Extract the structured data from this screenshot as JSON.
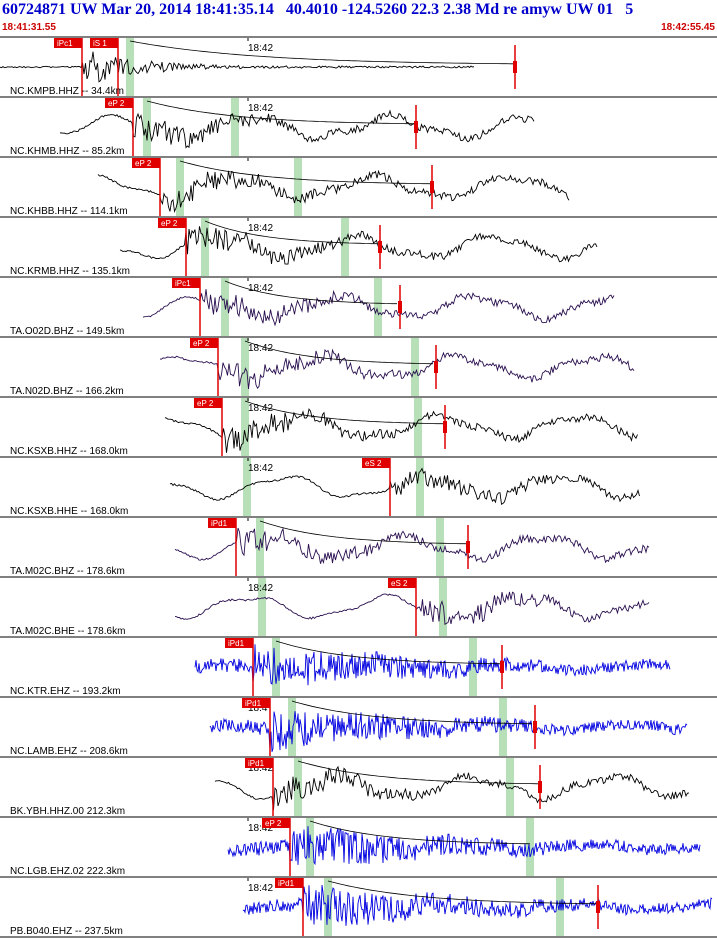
{
  "header": {
    "title": "60724871 UW Mar 20, 2014 18:41:35.14   40.4010 -124.5260 22.3 2.38 Md re amyw UW 01   5",
    "time_start": "18:41:31.55",
    "time_end": "18:42:55.45"
  },
  "colors": {
    "title": "#0000cc",
    "time_range": "#cc0000",
    "pick": "#e00000",
    "coda_window": "#b8e0b8",
    "trace_black": "#000000",
    "trace_purple": "#2a1050",
    "trace_blue": "#0000e0"
  },
  "traces": [
    {
      "label": "NC.KMPB.HHZ -- 34.4km",
      "time_label": "18:42",
      "picks": [
        "iPc1",
        "iS 1"
      ],
      "color": "black",
      "icon": "seismogram-trace"
    },
    {
      "label": "NC.KHMB.HHZ -- 85.2km",
      "time_label": "18:42",
      "picks": [
        "eP 2"
      ],
      "color": "black",
      "icon": "seismogram-trace"
    },
    {
      "label": "NC.KHBB.HHZ -- 114.1km",
      "time_label": "",
      "picks": [
        "eP 2"
      ],
      "color": "black",
      "icon": "seismogram-trace"
    },
    {
      "label": "NC.KRMB.HHZ -- 135.1km",
      "time_label": "18:42",
      "picks": [
        "eP 2"
      ],
      "color": "black",
      "icon": "seismogram-trace"
    },
    {
      "label": "TA.O02D.BHZ -- 149.5km",
      "time_label": "18:42",
      "picks": [
        "iPc1"
      ],
      "color": "purple",
      "icon": "seismogram-trace"
    },
    {
      "label": "TA.N02D.BHZ -- 166.2km",
      "time_label": "18:42",
      "picks": [
        "eP 2"
      ],
      "color": "purple",
      "icon": "seismogram-trace"
    },
    {
      "label": "NC.KSXB.HHZ -- 168.0km",
      "time_label": "18:42",
      "picks": [
        "eP 2"
      ],
      "color": "black",
      "icon": "seismogram-trace"
    },
    {
      "label": "NC.KSXB.HHE -- 168.0km",
      "time_label": "18:42",
      "picks": [
        "eS 2"
      ],
      "color": "black",
      "icon": "seismogram-trace"
    },
    {
      "label": "TA.M02C.BHZ -- 178.6km",
      "time_label": "",
      "picks": [
        "iPd1"
      ],
      "color": "purple",
      "icon": "seismogram-trace"
    },
    {
      "label": "TA.M02C.BHE -- 178.6km",
      "time_label": "18:42",
      "picks": [
        "eS 2"
      ],
      "color": "purple",
      "icon": "seismogram-trace"
    },
    {
      "label": "NC.KTR.EHZ -- 193.2km",
      "time_label": "",
      "picks": [
        "iPd1"
      ],
      "color": "blue",
      "icon": "seismogram-trace"
    },
    {
      "label": "NC.LAMB.EHZ -- 208.6km",
      "time_label": "18:4",
      "picks": [
        "iPd1"
      ],
      "color": "blue",
      "icon": "seismogram-trace"
    },
    {
      "label": "BK.YBH.HHZ.00 212.3km",
      "time_label": "18:42",
      "picks": [
        "iPd1"
      ],
      "color": "black",
      "icon": "seismogram-trace"
    },
    {
      "label": "NC.LGB.EHZ.02 222.3km",
      "time_label": "18:42",
      "picks": [
        "eP 2"
      ],
      "color": "blue",
      "icon": "seismogram-trace"
    },
    {
      "label": "PB.B040.EHZ -- 237.5km",
      "time_label": "18:42",
      "picks": [
        "iPd1"
      ],
      "color": "blue",
      "icon": "seismogram-trace"
    }
  ]
}
